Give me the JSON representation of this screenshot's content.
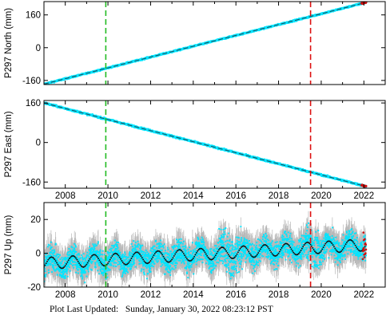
{
  "footer": {
    "label": "Plot Last Updated:",
    "timestamp": "Sunday, January 30, 2022 08:23:12 PST"
  },
  "chart_data": [
    {
      "type": "scatter",
      "ylabel": "P297 North (mm)",
      "xlim": [
        2007.0,
        2023.0
      ],
      "ylim": [
        -180,
        225
      ],
      "xticks": [
        2008,
        2010,
        2012,
        2014,
        2016,
        2018,
        2020,
        2022
      ],
      "xtick_labels_visible": false,
      "yticks": [
        -160,
        0,
        160
      ],
      "trend": {
        "x": [
          2007.0,
          2022.1
        ],
        "y": [
          -178,
          221
        ]
      },
      "series": [
        {
          "label_role": "observations",
          "color": "#00e5ff"
        },
        {
          "label_role": "model",
          "color": "#1a5a6a"
        }
      ],
      "vlines": [
        {
          "x": 2009.9,
          "color": "#22bb22",
          "style": "dashed"
        },
        {
          "x": 2019.5,
          "color": "#dd1111",
          "style": "dashed"
        }
      ]
    },
    {
      "type": "scatter",
      "ylabel": "P297 East (mm)",
      "xlim": [
        2007.0,
        2023.0
      ],
      "ylim": [
        -185,
        170
      ],
      "xticks": [
        2008,
        2010,
        2012,
        2014,
        2016,
        2018,
        2020,
        2022
      ],
      "xtick_labels": [
        "2008",
        "2010",
        "2012",
        "2014",
        "2016",
        "2018",
        "2020",
        "2022"
      ],
      "yticks": [
        -160,
        0,
        160
      ],
      "trend": {
        "x": [
          2007.0,
          2022.1
        ],
        "y": [
          160,
          -178
        ]
      },
      "series": [
        {
          "label_role": "observations",
          "color": "#00e5ff"
        },
        {
          "label_role": "model",
          "color": "#1a5a6a"
        }
      ],
      "vlines": [
        {
          "x": 2009.9,
          "color": "#22bb22",
          "style": "dashed"
        },
        {
          "x": 2019.5,
          "color": "#dd1111",
          "style": "dashed"
        }
      ]
    },
    {
      "type": "scatter",
      "ylabel": "P297 Up (mm)",
      "xlim": [
        2007.0,
        2023.0
      ],
      "ylim": [
        -20,
        30
      ],
      "xticks": [
        2008,
        2010,
        2012,
        2014,
        2016,
        2018,
        2020,
        2022
      ],
      "xtick_labels": [
        "2008",
        "2010",
        "2012",
        "2014",
        "2016",
        "2018",
        "2020",
        "2022"
      ],
      "yticks": [
        -20,
        0,
        20
      ],
      "seasonal_model": {
        "mean_start": -6,
        "mean_end": 5,
        "amplitude": 3.5,
        "period_years": 1
      },
      "series": [
        {
          "label_role": "error bars",
          "color": "#b8b8b8"
        },
        {
          "label_role": "observations",
          "color": "#00e5ff"
        },
        {
          "label_role": "model",
          "color": "#111111"
        }
      ],
      "vlines": [
        {
          "x": 2009.9,
          "color": "#22bb22",
          "style": "dashed"
        },
        {
          "x": 2019.5,
          "color": "#dd1111",
          "style": "dashed"
        }
      ]
    }
  ]
}
